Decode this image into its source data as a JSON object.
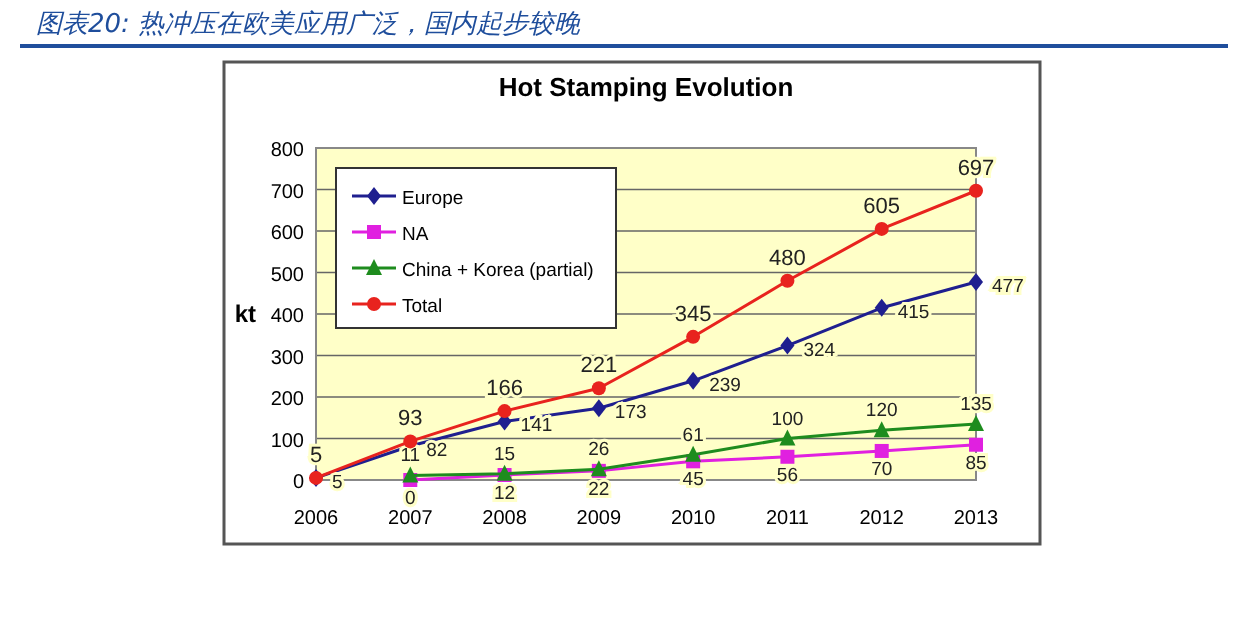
{
  "chart_data": {
    "type": "line",
    "title": "Hot Stamping Evolution",
    "subtitle": "图表20: 热冲压在欧美应用广泛，国内起步较晚",
    "ylabel": "kt",
    "categories": [
      "2006",
      "2007",
      "2008",
      "2009",
      "2010",
      "2011",
      "2012",
      "2013"
    ],
    "ylim": [
      0,
      800
    ],
    "yticks": [
      0,
      100,
      200,
      300,
      400,
      500,
      600,
      700,
      800
    ],
    "grid": "y",
    "legend": "top left",
    "series": [
      {
        "name": "Europe",
        "color": "#1f1f8f",
        "marker": "diamond",
        "values": [
          5,
          82,
          141,
          173,
          239,
          324,
          415,
          477
        ],
        "value_labels": [
          "5",
          "82",
          "141",
          "173",
          "239",
          "324",
          "415",
          "477"
        ]
      },
      {
        "name": "NA",
        "color": "#e020e0",
        "marker": "square",
        "values": [
          null,
          0,
          12,
          22,
          45,
          56,
          70,
          85
        ],
        "value_labels": [
          null,
          "0",
          "12",
          "22",
          "45",
          "56",
          "70",
          "85"
        ]
      },
      {
        "name": "China + Korea (partial)",
        "color": "#1e8c1e",
        "marker": "triangle",
        "values": [
          null,
          11,
          15,
          26,
          61,
          100,
          120,
          135
        ],
        "value_labels": [
          null,
          "11",
          "15",
          "26",
          "61",
          "100",
          "120",
          "135"
        ]
      },
      {
        "name": "Total",
        "color": "#e8231e",
        "marker": "circle",
        "values": [
          5,
          93,
          166,
          221,
          345,
          480,
          605,
          697
        ],
        "value_labels": [
          "5",
          "93",
          "166",
          "221",
          "345",
          "480",
          "605",
          "697"
        ]
      }
    ]
  }
}
